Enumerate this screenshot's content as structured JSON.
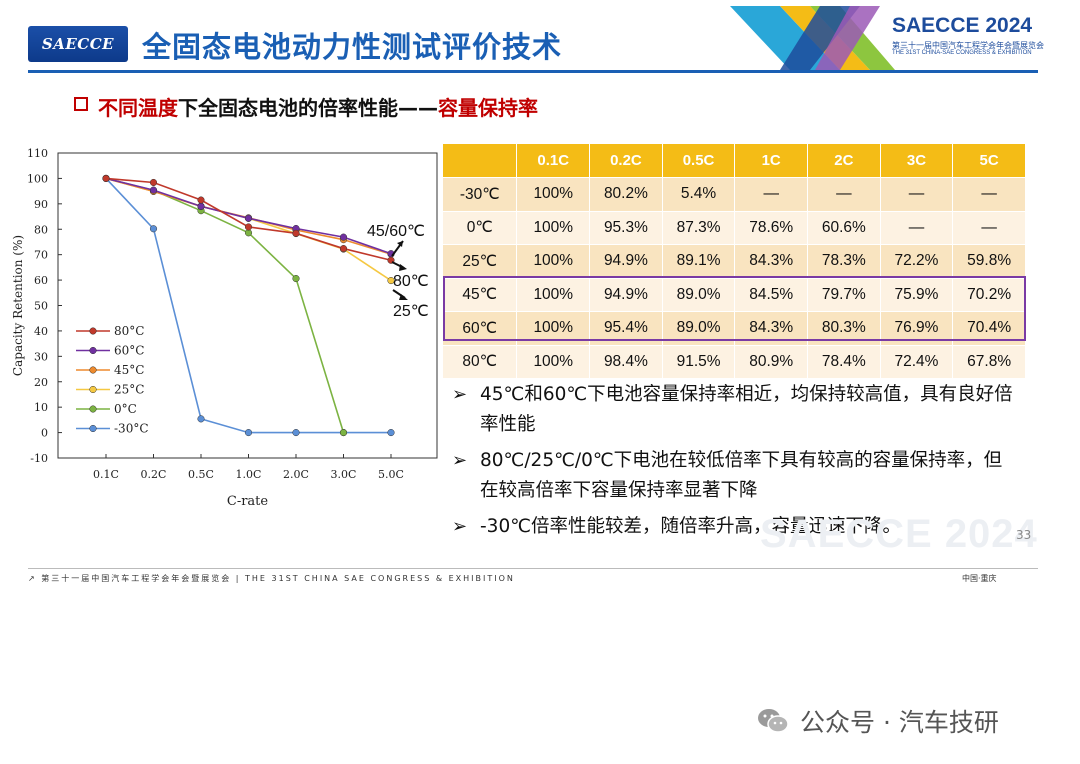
{
  "header": {
    "logo_text": "SAECCE",
    "title": "全固态电池动力性测试评价技术",
    "event_title": "SAECCE 2024",
    "event_sub": "第三十一届中国汽车工程学会年会暨展览会",
    "event_sub2": "THE 31ST CHINA-SAE CONGRESS & EXHIBITION"
  },
  "subtitle": {
    "part1": "不同温度",
    "part2": "下全固态电池的倍率性能——",
    "part3": "容量保持率"
  },
  "chart_data": {
    "type": "line",
    "xlabel": "C-rate",
    "ylabel": "Capacity Retention (%)",
    "categories": [
      "0.1C",
      "0.2C",
      "0.5C",
      "1.0C",
      "2.0C",
      "3.0C",
      "5.0C"
    ],
    "ylim": [
      -10,
      110
    ],
    "yticks": [
      -10,
      0,
      10,
      20,
      30,
      40,
      50,
      60,
      70,
      80,
      90,
      100,
      110
    ],
    "legend_position": "lower-left",
    "series": [
      {
        "name": "80°C",
        "color": "#c0392b",
        "values": [
          100,
          98.4,
          91.5,
          80.9,
          78.4,
          72.4,
          67.8
        ]
      },
      {
        "name": "60°C",
        "color": "#7030a0",
        "values": [
          100,
          95.4,
          89.0,
          84.3,
          80.3,
          76.9,
          70.4
        ]
      },
      {
        "name": "45°C",
        "color": "#ed8a2e",
        "values": [
          100,
          94.9,
          89.0,
          84.5,
          79.7,
          75.9,
          70.2
        ]
      },
      {
        "name": "25°C",
        "color": "#f5c842",
        "values": [
          100,
          94.9,
          89.1,
          84.3,
          78.3,
          72.2,
          59.8
        ]
      },
      {
        "name": "0°C",
        "color": "#7cb342",
        "values": [
          100,
          95.3,
          87.3,
          78.6,
          60.6,
          0,
          null
        ]
      },
      {
        "name": "-30°C",
        "color": "#5b8fd6",
        "values": [
          100,
          80.2,
          5.4,
          0,
          0,
          0,
          0
        ]
      }
    ],
    "annotations": [
      "45/60℃",
      "80℃",
      "25℃"
    ]
  },
  "table": {
    "headers": [
      "",
      "0.1C",
      "0.2C",
      "0.5C",
      "1C",
      "2C",
      "3C",
      "5C"
    ],
    "rows": [
      [
        "-30℃",
        "100%",
        "80.2%",
        "5.4%",
        "—",
        "—",
        "—",
        "—"
      ],
      [
        "0℃",
        "100%",
        "95.3%",
        "87.3%",
        "78.6%",
        "60.6%",
        "—",
        "—"
      ],
      [
        "25℃",
        "100%",
        "94.9%",
        "89.1%",
        "84.3%",
        "78.3%",
        "72.2%",
        "59.8%"
      ],
      [
        "45℃",
        "100%",
        "94.9%",
        "89.0%",
        "84.5%",
        "79.7%",
        "75.9%",
        "70.2%"
      ],
      [
        "60℃",
        "100%",
        "95.4%",
        "89.0%",
        "84.3%",
        "80.3%",
        "76.9%",
        "70.4%"
      ],
      [
        "80℃",
        "100%",
        "98.4%",
        "91.5%",
        "80.9%",
        "78.4%",
        "72.4%",
        "67.8%"
      ]
    ],
    "highlight_color": "#7a3aa4"
  },
  "points": [
    "45℃和60℃下电池容量保持率相近，均保持较高值，具有良好倍率性能",
    "80℃/25℃/0℃下电池在较低倍率下具有较高的容量保持率，但在较高倍率下容量保持率显著下降",
    "-30℃倍率性能较差，随倍率升高，容量迅速下降。"
  ],
  "page_number": "33",
  "watermark": "SAECCE 2024",
  "footer": {
    "left": "↗ 第三十一届中国汽车工程学会年会暨展览会 | THE 31ST CHINA SAE CONGRESS & EXHIBITION",
    "right": "中国·重庆"
  },
  "wechat": {
    "text": "公众号 · 汽车技研"
  }
}
